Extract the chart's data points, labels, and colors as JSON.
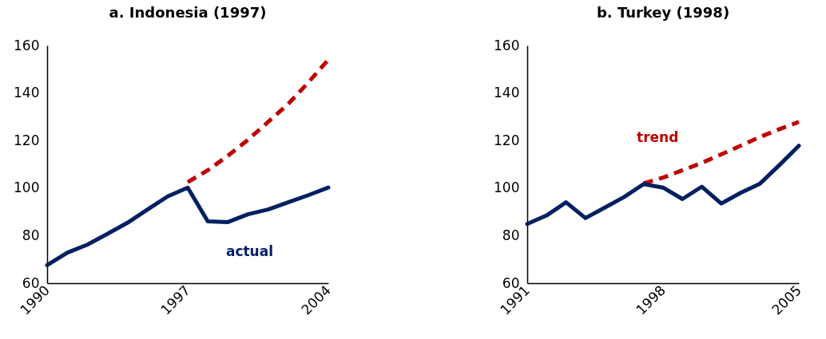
{
  "chart_data": [
    {
      "type": "line",
      "title": "a. Indonesia (1997)",
      "xlim": [
        1990,
        2004
      ],
      "xticks": [
        1990,
        1997,
        2004
      ],
      "ylim": [
        60,
        160
      ],
      "yticks": [
        60,
        80,
        100,
        120,
        140,
        160
      ],
      "grid": false,
      "legend": false,
      "marker": "none",
      "series": [
        {
          "name": "actual",
          "color": "#002060",
          "line_style": "solid",
          "x": [
            1990,
            1991,
            1992,
            1993,
            1994,
            1995,
            1996,
            1997,
            1998,
            1999,
            2000,
            2001,
            2002,
            2003,
            2004
          ],
          "values": [
            67.6,
            72.8,
            76.2,
            80.7,
            85.4,
            91,
            96.5,
            100.2,
            86,
            85.7,
            89,
            91,
            94,
            97,
            100.2
          ]
        },
        {
          "color": "#c00000",
          "line_style": "dashed",
          "x": [
            1997,
            1998,
            1999,
            2000,
            2001,
            2002,
            2003,
            2004
          ],
          "values": [
            102.5,
            107.5,
            113.6,
            120.3,
            127.8,
            135.4,
            144.4,
            154
          ]
        }
      ]
    },
    {
      "type": "line",
      "title": "b. Turkey (1998)",
      "xlim": [
        1991,
        2005
      ],
      "xticks": [
        1991,
        1998,
        2005
      ],
      "ylim": [
        60,
        160
      ],
      "yticks": [
        60,
        80,
        100,
        120,
        140,
        160
      ],
      "grid": false,
      "legend": false,
      "marker": "none",
      "series": [
        {
          "name": "trend",
          "color": "#c00000",
          "line_style": "dashed",
          "x": [
            1997,
            1998,
            1999,
            2000,
            2001,
            2002,
            2003,
            2004,
            2005
          ],
          "values": [
            102,
            104.4,
            107.5,
            110.6,
            114.2,
            117.8,
            121.5,
            124.8,
            127.8
          ]
        },
        {
          "color": "#002060",
          "line_style": "solid",
          "x": [
            1991,
            1992,
            1993,
            1994,
            1995,
            1996,
            1997,
            1998,
            1999,
            2000,
            2001,
            2002,
            2003,
            2004,
            2005
          ],
          "values": [
            84.9,
            88.5,
            94,
            87.4,
            91.8,
            96.3,
            101.7,
            100.2,
            95.4,
            100.6,
            93.5,
            98,
            101.9,
            109.7,
            117.8
          ]
        }
      ]
    }
  ]
}
